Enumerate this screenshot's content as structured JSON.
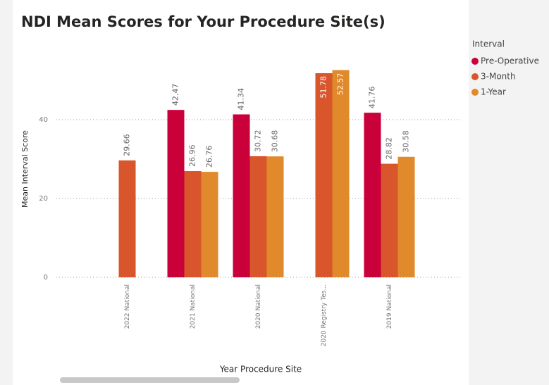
{
  "chart_data": {
    "type": "bar",
    "title": "NDI Mean Scores for Your Procedure Site(s)",
    "x_label": "Year Procedure Site",
    "y_label": "Mean Interval Score",
    "legend_title": "Interval",
    "legend_position": "right",
    "categories": [
      "2022 National",
      "2021 National",
      "2020 National",
      "2020 Registry Tes...",
      "2019 National"
    ],
    "series": [
      {
        "name": "Pre-Operative",
        "color": "#c9003a",
        "values": [
          null,
          42.47,
          41.34,
          null,
          41.76
        ]
      },
      {
        "name": "3-Month",
        "color": "#d9552b",
        "values": [
          29.66,
          26.96,
          30.72,
          51.78,
          28.82
        ]
      },
      {
        "name": "1-Year",
        "color": "#e08a2b",
        "values": [
          null,
          26.76,
          30.68,
          52.57,
          30.58
        ]
      }
    ],
    "ylim": [
      0,
      55
    ],
    "yticks": [
      0,
      20,
      40
    ],
    "grid": true
  }
}
